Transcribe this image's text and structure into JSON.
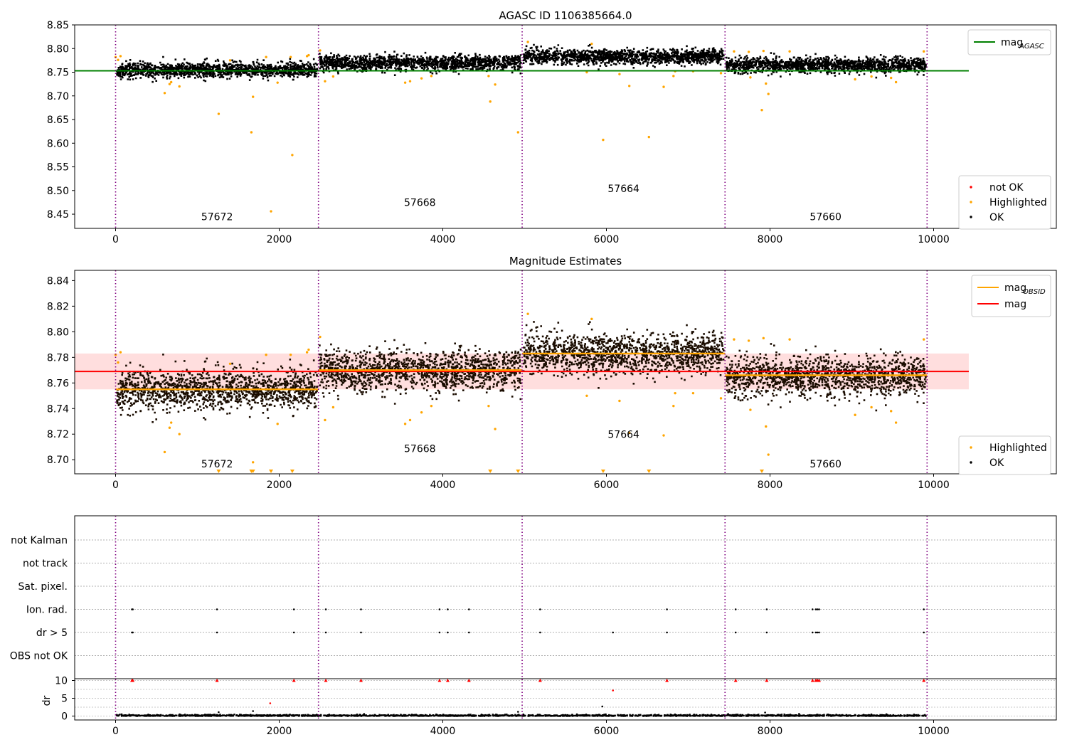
{
  "chart_data": [
    {
      "type": "scatter",
      "title": "AGASC ID 1106385664.0",
      "xlim": [
        -500,
        11500
      ],
      "ylim": [
        8.42,
        8.85
      ],
      "x_ticks": [
        "0",
        "2000",
        "4000",
        "6000",
        "8000",
        "10000"
      ],
      "x_tick_values": [
        0,
        2000,
        4000,
        6000,
        8000,
        10000
      ],
      "y_ticks": [
        "8.45",
        "8.50",
        "8.55",
        "8.60",
        "8.65",
        "8.70",
        "8.75",
        "8.80",
        "8.85"
      ],
      "y_tick_values": [
        8.45,
        8.5,
        8.55,
        8.6,
        8.65,
        8.7,
        8.75,
        8.8,
        8.85
      ],
      "obs_boundaries": [
        0,
        2480,
        4970,
        7450,
        9920
      ],
      "obs_labels": [
        {
          "text": "57672",
          "x": 1240,
          "y": 8.437
        },
        {
          "text": "57668",
          "x": 3720,
          "y": 8.467
        },
        {
          "text": "57664",
          "x": 6210,
          "y": 8.497
        },
        {
          "text": "57660",
          "x": 8680,
          "y": 8.437
        }
      ],
      "obs_segments": [
        {
          "x0": 0,
          "x1": 2480,
          "mean": 8.755,
          "sigma": 0.008
        },
        {
          "x0": 2480,
          "x1": 4970,
          "mean": 8.77,
          "sigma": 0.008
        },
        {
          "x0": 4970,
          "x1": 7450,
          "mean": 8.783,
          "sigma": 0.008
        },
        {
          "x0": 7450,
          "x1": 9920,
          "mean": 8.765,
          "sigma": 0.008
        }
      ],
      "mag_agasc": 8.753,
      "mag_line_x": [
        -500,
        10430
      ],
      "highlighted": [
        {
          "x": 0,
          "y": 8.782
        },
        {
          "x": 30,
          "y": 8.776
        },
        {
          "x": 60,
          "y": 8.784
        },
        {
          "x": 600,
          "y": 8.706
        },
        {
          "x": 660,
          "y": 8.725
        },
        {
          "x": 680,
          "y": 8.729
        },
        {
          "x": 780,
          "y": 8.72
        },
        {
          "x": 1260,
          "y": 8.662
        },
        {
          "x": 1400,
          "y": 8.775
        },
        {
          "x": 1660,
          "y": 8.623
        },
        {
          "x": 1680,
          "y": 8.698
        },
        {
          "x": 1840,
          "y": 8.782
        },
        {
          "x": 1900,
          "y": 8.456
        },
        {
          "x": 1980,
          "y": 8.728
        },
        {
          "x": 2140,
          "y": 8.782
        },
        {
          "x": 2160,
          "y": 8.575
        },
        {
          "x": 2340,
          "y": 8.784
        },
        {
          "x": 2360,
          "y": 8.786
        },
        {
          "x": 2500,
          "y": 8.796
        },
        {
          "x": 2560,
          "y": 8.731
        },
        {
          "x": 2660,
          "y": 8.741
        },
        {
          "x": 3540,
          "y": 8.728
        },
        {
          "x": 3600,
          "y": 8.731
        },
        {
          "x": 3740,
          "y": 8.737
        },
        {
          "x": 3860,
          "y": 8.742
        },
        {
          "x": 4560,
          "y": 8.742
        },
        {
          "x": 4580,
          "y": 8.688
        },
        {
          "x": 4640,
          "y": 8.724
        },
        {
          "x": 4920,
          "y": 8.623
        },
        {
          "x": 5040,
          "y": 8.814
        },
        {
          "x": 5760,
          "y": 8.75
        },
        {
          "x": 5820,
          "y": 8.81
        },
        {
          "x": 5960,
          "y": 8.607
        },
        {
          "x": 6160,
          "y": 8.746
        },
        {
          "x": 6280,
          "y": 8.721
        },
        {
          "x": 6520,
          "y": 8.613
        },
        {
          "x": 6700,
          "y": 8.719
        },
        {
          "x": 6820,
          "y": 8.742
        },
        {
          "x": 6840,
          "y": 8.752
        },
        {
          "x": 7060,
          "y": 8.752
        },
        {
          "x": 7400,
          "y": 8.748
        },
        {
          "x": 7560,
          "y": 8.794
        },
        {
          "x": 7740,
          "y": 8.793
        },
        {
          "x": 7760,
          "y": 8.739
        },
        {
          "x": 7920,
          "y": 8.795
        },
        {
          "x": 7900,
          "y": 8.67
        },
        {
          "x": 7950,
          "y": 8.726
        },
        {
          "x": 7980,
          "y": 8.704
        },
        {
          "x": 8240,
          "y": 8.794
        },
        {
          "x": 9040,
          "y": 8.735
        },
        {
          "x": 9240,
          "y": 8.741
        },
        {
          "x": 9480,
          "y": 8.738
        },
        {
          "x": 9540,
          "y": 8.729
        },
        {
          "x": 9880,
          "y": 8.794
        }
      ],
      "legend_lines": [
        {
          "label": "mag",
          "sub": "AGASC",
          "color": "#008000"
        }
      ],
      "legend_points": [
        {
          "label": "not OK",
          "color": "#ff0000"
        },
        {
          "label": "Highlighted",
          "color": "#ffa500"
        },
        {
          "label": "OK",
          "color": "#000000"
        }
      ],
      "ok_color": "#000000"
    },
    {
      "type": "scatter",
      "title": "Magnitude Estimates",
      "xlim": [
        -500,
        11500
      ],
      "ylim": [
        8.689,
        8.848
      ],
      "x_ticks": [
        "0",
        "2000",
        "4000",
        "6000",
        "8000",
        "10000"
      ],
      "x_tick_values": [
        0,
        2000,
        4000,
        6000,
        8000,
        10000
      ],
      "y_ticks": [
        "8.70",
        "8.72",
        "8.74",
        "8.76",
        "8.78",
        "8.80",
        "8.82",
        "8.84"
      ],
      "y_tick_values": [
        8.7,
        8.72,
        8.74,
        8.76,
        8.78,
        8.8,
        8.82,
        8.84
      ],
      "obs_boundaries": [
        0,
        2480,
        4970,
        7450,
        9920
      ],
      "obs_labels": [
        {
          "text": "57672",
          "x": 1240,
          "y": 8.694
        },
        {
          "text": "57668",
          "x": 3720,
          "y": 8.706
        },
        {
          "text": "57664",
          "x": 6210,
          "y": 8.717
        },
        {
          "text": "57660",
          "x": 8680,
          "y": 8.694
        }
      ],
      "obs_segments": [
        {
          "x0": 0,
          "x1": 2480,
          "mean": 8.755,
          "sigma": 0.008
        },
        {
          "x0": 2480,
          "x1": 4970,
          "mean": 8.77,
          "sigma": 0.008
        },
        {
          "x0": 4970,
          "x1": 7450,
          "mean": 8.783,
          "sigma": 0.008
        },
        {
          "x0": 7450,
          "x1": 9920,
          "mean": 8.765,
          "sigma": 0.008
        }
      ],
      "mag": 8.769,
      "mag_band": [
        8.755,
        8.783
      ],
      "mag_line_x": [
        -500,
        10430
      ],
      "obsid_lines": [
        {
          "x0": 0,
          "x1": 2480,
          "y": 8.755
        },
        {
          "x0": 2480,
          "x1": 4970,
          "y": 8.77
        },
        {
          "x0": 4970,
          "x1": 7450,
          "y": 8.783
        },
        {
          "x0": 7450,
          "x1": 9920,
          "y": 8.766
        }
      ],
      "highlighted": [
        {
          "x": 0,
          "y": 8.782
        },
        {
          "x": 30,
          "y": 8.776
        },
        {
          "x": 60,
          "y": 8.784
        },
        {
          "x": 600,
          "y": 8.706
        },
        {
          "x": 660,
          "y": 8.725
        },
        {
          "x": 680,
          "y": 8.729
        },
        {
          "x": 780,
          "y": 8.72
        },
        {
          "x": 1400,
          "y": 8.775
        },
        {
          "x": 1680,
          "y": 8.698
        },
        {
          "x": 1840,
          "y": 8.782
        },
        {
          "x": 1980,
          "y": 8.728
        },
        {
          "x": 2140,
          "y": 8.782
        },
        {
          "x": 2340,
          "y": 8.784
        },
        {
          "x": 2360,
          "y": 8.786
        },
        {
          "x": 2500,
          "y": 8.796
        },
        {
          "x": 2560,
          "y": 8.731
        },
        {
          "x": 2660,
          "y": 8.741
        },
        {
          "x": 3540,
          "y": 8.728
        },
        {
          "x": 3600,
          "y": 8.731
        },
        {
          "x": 3740,
          "y": 8.737
        },
        {
          "x": 3860,
          "y": 8.742
        },
        {
          "x": 4560,
          "y": 8.742
        },
        {
          "x": 4640,
          "y": 8.724
        },
        {
          "x": 5040,
          "y": 8.814
        },
        {
          "x": 5760,
          "y": 8.75
        },
        {
          "x": 5820,
          "y": 8.81
        },
        {
          "x": 6160,
          "y": 8.746
        },
        {
          "x": 6280,
          "y": 8.721
        },
        {
          "x": 6700,
          "y": 8.719
        },
        {
          "x": 6820,
          "y": 8.742
        },
        {
          "x": 6840,
          "y": 8.752
        },
        {
          "x": 7060,
          "y": 8.752
        },
        {
          "x": 7400,
          "y": 8.748
        },
        {
          "x": 7560,
          "y": 8.794
        },
        {
          "x": 7740,
          "y": 8.793
        },
        {
          "x": 7760,
          "y": 8.739
        },
        {
          "x": 7920,
          "y": 8.795
        },
        {
          "x": 7950,
          "y": 8.726
        },
        {
          "x": 7980,
          "y": 8.704
        },
        {
          "x": 8240,
          "y": 8.794
        },
        {
          "x": 9040,
          "y": 8.735
        },
        {
          "x": 9240,
          "y": 8.741
        },
        {
          "x": 9480,
          "y": 8.738
        },
        {
          "x": 9540,
          "y": 8.729
        },
        {
          "x": 9880,
          "y": 8.794
        }
      ],
      "off_scale_markers": [
        1260,
        1660,
        1680,
        1900,
        2160,
        4580,
        4920,
        5960,
        6520,
        7900
      ],
      "legend_lines": [
        {
          "label": "mag",
          "sub": "OBSID",
          "color": "#ffa500"
        },
        {
          "label": "mag",
          "sub": "",
          "color": "#ff0000"
        }
      ],
      "legend_points": [
        {
          "label": "Highlighted",
          "color": "#ffa500"
        },
        {
          "label": "OK",
          "color": "#000000"
        }
      ],
      "band_color": "#ffdede",
      "ok_color": "#1a0c00"
    },
    {
      "type": "scatter",
      "xlim": [
        -500,
        11500
      ],
      "x_ticks": [
        "0",
        "2000",
        "4000",
        "6000",
        "8000",
        "10000"
      ],
      "x_tick_values": [
        0,
        2000,
        4000,
        6000,
        8000,
        10000
      ],
      "obs_boundaries": [
        0,
        2480,
        4970,
        7450,
        9920
      ],
      "flag_rows": [
        "not Kalman",
        "not track",
        "Sat. pixel.",
        "Ion. rad.",
        "dr > 5",
        "OBS not OK"
      ],
      "flag_events": {
        "Ion. rad.": [
          200,
          210,
          1240,
          2180,
          2570,
          3000,
          3960,
          4060,
          4320,
          5190,
          6740,
          7580,
          7960,
          8520,
          8560,
          8580,
          8600,
          9880
        ],
        "dr > 5": [
          200,
          210,
          1240,
          2180,
          2570,
          3000,
          3960,
          4060,
          4320,
          5190,
          6080,
          6740,
          7580,
          7960,
          8520,
          8560,
          8580,
          8600,
          9880
        ]
      },
      "dr_axis": {
        "ylabel": "dr",
        "ylim": [
          -0.5,
          10.5
        ],
        "y_ticks": [
          "0",
          "5",
          "10"
        ],
        "y_tick_values": [
          0,
          5,
          10
        ],
        "clipped": [
          200,
          210,
          1240,
          2180,
          2570,
          3000,
          3960,
          4060,
          4320,
          5190,
          6740,
          7580,
          7960,
          8520,
          8560,
          8580,
          8600,
          9880
        ],
        "mid_points": [
          {
            "x": 1890,
            "y": 3.6
          },
          {
            "x": 6080,
            "y": 7.2
          },
          {
            "x": 5950,
            "y": 2.7
          },
          {
            "x": 1260,
            "y": 1.1
          },
          {
            "x": 4920,
            "y": 1.2
          },
          {
            "x": 7940,
            "y": 1.0
          },
          {
            "x": 1680,
            "y": 1.4
          }
        ]
      }
    }
  ]
}
